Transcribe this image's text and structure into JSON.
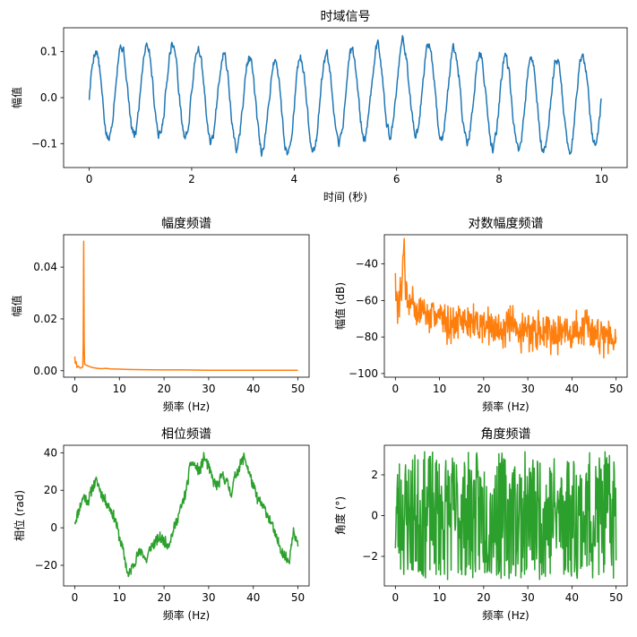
{
  "chart_data": [
    {
      "id": "time",
      "type": "line",
      "title": "时域信号",
      "xlabel": "时间 (秒)",
      "ylabel": "幅值",
      "xlim": [
        -0.5,
        10.5
      ],
      "ylim": [
        -0.152,
        0.152
      ],
      "xticks": [
        0,
        2,
        4,
        6,
        8,
        10
      ],
      "xtick_labels": [
        "0",
        "2",
        "4",
        "6",
        "8",
        "10"
      ],
      "yticks": [
        -0.1,
        0.0,
        0.1
      ],
      "ytick_labels": [
        "−0.1",
        "0.0",
        "0.1"
      ],
      "grid": false,
      "series": [
        {
          "color": "#1f77b4",
          "signal": {
            "x_start": 0,
            "x_end": 10,
            "samples": 1000,
            "frequency_hz": 2,
            "amplitude": 0.1,
            "noise_amplitude": 0.012,
            "trend_period": 5,
            "trend_amplitude": 0.02
          }
        }
      ]
    },
    {
      "id": "mag",
      "type": "line",
      "title": "幅度频谱",
      "xlabel": "频率 (Hz)",
      "ylabel": "幅值",
      "xlim": [
        -2.5,
        52.5
      ],
      "ylim": [
        -0.0025,
        0.0525
      ],
      "xticks": [
        0,
        10,
        20,
        30,
        40,
        50
      ],
      "xtick_labels": [
        "0",
        "10",
        "20",
        "30",
        "40",
        "50"
      ],
      "yticks": [
        0.0,
        0.02,
        0.04
      ],
      "ytick_labels": [
        "0.00",
        "0.02",
        "0.04"
      ],
      "grid": false,
      "series": [
        {
          "color": "#ff7f0e",
          "x": [
            0,
            0.1,
            0.2,
            0.3,
            0.5,
            0.8,
            1.0,
            1.2,
            1.5,
            1.8,
            1.9,
            2.0,
            2.1,
            2.2,
            2.5,
            3.0,
            3.5,
            4.0,
            4.5,
            5.0,
            6.0,
            7.0,
            8.0,
            10.0,
            12.0,
            15.0,
            20.0,
            25.0,
            30.0,
            35.0,
            40.0,
            45.0,
            50.0
          ],
          "y": [
            0.0055,
            0.003,
            0.0028,
            0.0035,
            0.0012,
            0.0018,
            0.0014,
            0.001,
            0.0012,
            0.0015,
            0.01,
            0.05,
            0.012,
            0.0025,
            0.0022,
            0.0018,
            0.0015,
            0.0012,
            0.0011,
            0.0009,
            0.0008,
            0.0009,
            0.0007,
            0.0006,
            0.0005,
            0.0004,
            0.0003,
            0.0003,
            0.0002,
            0.0002,
            0.0002,
            0.0002,
            0.0002
          ]
        }
      ]
    },
    {
      "id": "logmag",
      "type": "line",
      "title": "对数幅度频谱",
      "xlabel": "频率 (Hz)",
      "ylabel": "幅值 (dB)",
      "xlim": [
        -2.5,
        52.5
      ],
      "ylim": [
        -102,
        -24
      ],
      "xticks": [
        0,
        10,
        20,
        30,
        40,
        50
      ],
      "xtick_labels": [
        "0",
        "10",
        "20",
        "30",
        "40",
        "50"
      ],
      "yticks": [
        -100,
        -80,
        -60,
        -40
      ],
      "ytick_labels": [
        "−100",
        "−80",
        "−60",
        "−40"
      ],
      "grid": false,
      "series": [
        {
          "color": "#ff7f0e",
          "x": [
            0,
            0.2,
            0.4,
            0.6,
            0.8,
            1.0,
            1.2,
            1.4,
            1.6,
            1.8,
            2.0,
            2.2,
            2.4,
            2.6,
            3.0,
            3.5,
            4.0,
            5.0,
            6.0,
            7.0,
            8.0,
            9.0,
            10.0,
            12.0,
            14.0,
            16.0,
            18.0,
            20.0,
            22.0,
            25.0,
            28.0,
            30.0,
            32.0,
            35.0,
            38.0,
            40.0,
            42.0,
            45.0,
            48.0,
            50.0
          ],
          "y": [
            -45,
            -60,
            -57,
            -62,
            -55,
            -58,
            -52,
            -60,
            -45,
            -35,
            -26,
            -48,
            -58,
            -52,
            -62,
            -60,
            -58,
            -70,
            -64,
            -67,
            -72,
            -66,
            -69,
            -70,
            -73,
            -71,
            -74,
            -72,
            -76,
            -74,
            -77,
            -75,
            -78,
            -76,
            -77,
            -79,
            -76,
            -78,
            -77,
            -80
          ]
        }
      ],
      "noise": {
        "amplitude_db": 8,
        "seed": 7
      }
    },
    {
      "id": "phase",
      "type": "line",
      "title": "相位频谱",
      "xlabel": "频率 (Hz)",
      "ylabel": "相位 (rad)",
      "xlim": [
        -2.5,
        52.5
      ],
      "ylim": [
        -31,
        44
      ],
      "xticks": [
        0,
        10,
        20,
        30,
        40,
        50
      ],
      "xtick_labels": [
        "0",
        "10",
        "20",
        "30",
        "40",
        "50"
      ],
      "yticks": [
        -20,
        0,
        20,
        40
      ],
      "ytick_labels": [
        "−20",
        "0",
        "20",
        "40"
      ],
      "grid": false,
      "series": [
        {
          "color": "#2ca02c",
          "x": [
            0,
            1,
            2,
            3,
            4,
            5,
            6,
            7,
            8,
            9,
            10,
            11,
            12,
            13,
            14,
            15,
            16,
            17,
            18,
            19,
            20,
            21,
            22,
            23,
            24,
            25,
            26,
            27,
            28,
            29,
            30,
            31,
            32,
            33,
            34,
            35,
            36,
            37,
            38,
            39,
            40,
            41,
            42,
            43,
            44,
            45,
            46,
            47,
            48,
            49,
            50
          ],
          "y": [
            3,
            10,
            17,
            14,
            22,
            25,
            18,
            14,
            10,
            5,
            -5,
            -14,
            -26,
            -20,
            -15,
            -12,
            -18,
            -10,
            -8,
            -5,
            -7,
            -9,
            -2,
            5,
            12,
            20,
            35,
            33,
            30,
            38,
            32,
            25,
            22,
            28,
            25,
            18,
            28,
            33,
            38,
            30,
            22,
            15,
            12,
            8,
            3,
            -5,
            -10,
            -15,
            -18,
            0,
            -10
          ]
        }
      ],
      "noise": {
        "amplitude": 3,
        "seed": 11
      }
    },
    {
      "id": "angle",
      "type": "line",
      "title": "角度频谱",
      "xlabel": "频率 (Hz)",
      "ylabel": "角度 (°)",
      "xlim": [
        -2.5,
        52.5
      ],
      "ylim": [
        -3.45,
        3.45
      ],
      "xticks": [
        0,
        10,
        20,
        30,
        40,
        50
      ],
      "xtick_labels": [
        "0",
        "10",
        "20",
        "30",
        "40",
        "50"
      ],
      "yticks": [
        -2,
        0,
        2
      ],
      "ytick_labels": [
        "−2",
        "0",
        "2"
      ],
      "grid": false,
      "series": [
        {
          "color": "#2ca02c",
          "signal": {
            "kind": "wrapped_random",
            "x_start": 0,
            "x_end": 50,
            "samples": 500,
            "range": [
              -3.14,
              3.14
            ],
            "seed": 23
          }
        }
      ]
    }
  ]
}
